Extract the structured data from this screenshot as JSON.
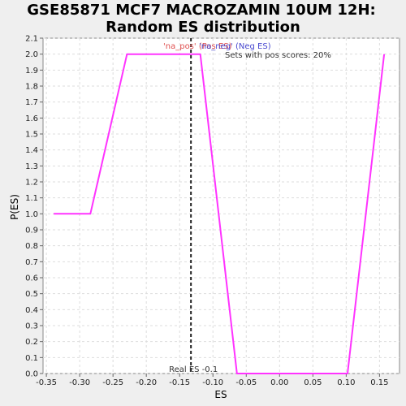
{
  "chart_data": {
    "type": "line",
    "title": [
      "GSE85871 MCF7 MACROZAMIN 10UM 12H:",
      "Random ES distribution"
    ],
    "xlabel": "ES",
    "ylabel": "P(ES)",
    "xlim": [
      -0.355,
      0.18
    ],
    "ylim": [
      0,
      2.1
    ],
    "x_ticks": [
      -0.35,
      -0.3,
      -0.25,
      -0.2,
      -0.15,
      -0.1,
      -0.05,
      0.0,
      0.05,
      0.1,
      0.15
    ],
    "x_tick_labels": [
      "-0.35",
      "-0.30",
      "-0.25",
      "-0.20",
      "-0.15",
      "-0.10",
      "-0.05",
      "0.00",
      "0.05",
      "0.10",
      "0.15"
    ],
    "y_ticks": [
      0.0,
      0.1,
      0.2,
      0.3,
      0.4,
      0.5,
      0.6,
      0.7,
      0.8,
      0.9,
      1.0,
      1.1,
      1.2,
      1.3,
      1.4,
      1.5,
      1.6,
      1.7,
      1.8,
      1.9,
      2.0,
      2.1
    ],
    "y_tick_labels": [
      "0.0",
      "0.1",
      "0.2",
      "0.3",
      "0.4",
      "0.5",
      "0.6",
      "0.7",
      "0.8",
      "0.9",
      "1.0",
      "1.1",
      "1.2",
      "1.3",
      "1.4",
      "1.5",
      "1.6",
      "1.7",
      "1.8",
      "1.9",
      "2.0",
      "2.1"
    ],
    "grid": true,
    "series": [
      {
        "color": "#ff33ff",
        "x": [
          -0.339,
          -0.284,
          -0.229,
          -0.119,
          -0.064,
          0.102,
          0.157
        ],
        "y": [
          1.0,
          1.0,
          2.0,
          2.0,
          0.0,
          0.0,
          2.0
        ]
      }
    ],
    "vline": {
      "x": -0.133,
      "label": "Real ES -0.1",
      "color": "#222222"
    },
    "annotations": [
      {
        "text": "'na_pos' (Pos ES)",
        "color": "#e05050"
      },
      {
        "text": "'na_neg' (Neg ES)",
        "color": "#4a4ad0"
      },
      {
        "text": "Sets with pos scores: 20%",
        "color": "#333333"
      }
    ]
  }
}
